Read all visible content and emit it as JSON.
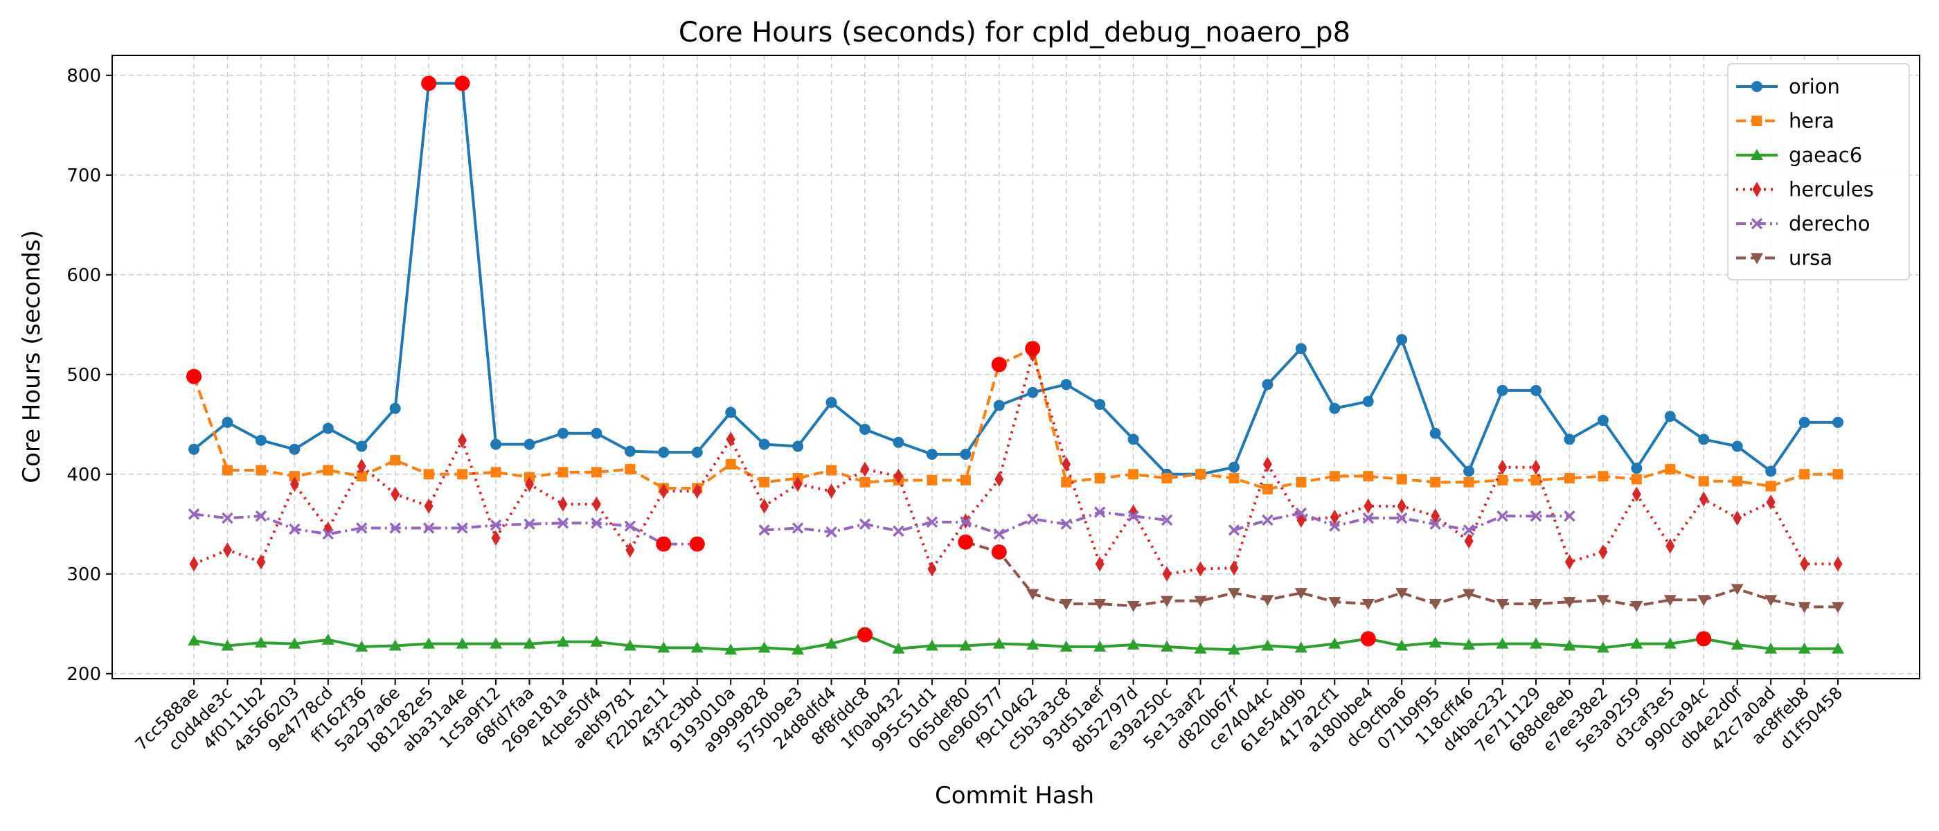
{
  "chart_data": {
    "type": "line",
    "title": "Core Hours (seconds) for cpld_debug_noaero_p8",
    "xlabel": "Commit Hash",
    "ylabel": "Core Hours (seconds)",
    "ylim": [
      195,
      820
    ],
    "yticks": [
      200,
      300,
      400,
      500,
      600,
      700,
      800
    ],
    "grid": true,
    "legend_position": "top-right",
    "categories": [
      "7cc588ae",
      "c0d4de3c",
      "4f0111b2",
      "4a566203",
      "9e4778cd",
      "ff162f36",
      "5a297a6e",
      "b81282e5",
      "aba31a4e",
      "1c5a9f12",
      "68fd7faa",
      "269e181a",
      "4cbe50f4",
      "aebf9781",
      "f22b2e11",
      "43f2c3bd",
      "9193010a",
      "a9999828",
      "5750b9e3",
      "24d8dfd4",
      "8f8fddc8",
      "1f0ab432",
      "995c51d1",
      "065def80",
      "0e960577",
      "f9c10462",
      "c5b3a3c8",
      "93d51aef",
      "8b52797d",
      "e39a250c",
      "5e13aaf2",
      "d820b67f",
      "ce74044c",
      "61e54d9b",
      "417a2cf1",
      "a180bbe4",
      "dc9cfba6",
      "071b9f95",
      "118cff46",
      "d4bac232",
      "7e711129",
      "688de8eb",
      "e7ee38e2",
      "5e3a9259",
      "d3caf3e5",
      "990ca94c",
      "db4e2d0f",
      "42c7a0ad",
      "ac8ffeb8",
      "d1f50458"
    ],
    "series": [
      {
        "name": "orion",
        "color": "#1f77b4",
        "marker": "circle",
        "dash": "solid",
        "values": [
          425,
          452,
          434,
          425,
          446,
          428,
          466,
          792,
          792,
          430,
          430,
          441,
          441,
          423,
          422,
          422,
          462,
          430,
          428,
          472,
          445,
          432,
          420,
          420,
          469,
          482,
          490,
          470,
          435,
          400,
          400,
          407,
          490,
          526,
          466,
          473,
          535,
          441,
          403,
          484,
          484,
          435,
          454,
          406,
          458,
          435,
          428,
          403,
          452,
          452
        ],
        "highlight": [
          7,
          8
        ]
      },
      {
        "name": "hera",
        "color": "#ff7f0e",
        "marker": "square",
        "dash": "dashed",
        "values": [
          498,
          404,
          404,
          398,
          404,
          398,
          414,
          400,
          400,
          402,
          397,
          402,
          402,
          405,
          386,
          386,
          410,
          392,
          396,
          404,
          392,
          394,
          394,
          394,
          510,
          526,
          392,
          396,
          400,
          396,
          400,
          396,
          385,
          392,
          398,
          398,
          395,
          392,
          392,
          394,
          394,
          396,
          398,
          395,
          405,
          393,
          393,
          388,
          400,
          400
        ],
        "highlight": [
          0,
          24,
          25
        ]
      },
      {
        "name": "gaeac6",
        "color": "#2ca02c",
        "marker": "triangle-up",
        "dash": "solid",
        "values": [
          233,
          228,
          231,
          230,
          234,
          227,
          228,
          230,
          230,
          230,
          230,
          232,
          232,
          228,
          226,
          226,
          224,
          226,
          224,
          230,
          239,
          225,
          228,
          228,
          230,
          229,
          227,
          227,
          229,
          227,
          225,
          224,
          228,
          226,
          230,
          235,
          228,
          231,
          229,
          230,
          230,
          228,
          226,
          230,
          230,
          235,
          229,
          225,
          225,
          225
        ],
        "highlight": [
          20,
          35,
          45
        ]
      },
      {
        "name": "hercules",
        "color": "#d62728",
        "marker": "diamond",
        "dash": "dotted",
        "values": [
          310,
          324,
          312,
          390,
          345,
          408,
          380,
          368,
          434,
          336,
          390,
          370,
          370,
          324,
          383,
          383,
          435,
          368,
          390,
          383,
          405,
          398,
          305,
          353,
          395,
          520,
          410,
          310,
          362,
          300,
          305,
          306,
          410,
          354,
          357,
          368,
          368,
          358,
          333,
          407,
          407,
          312,
          322,
          380,
          328,
          375,
          356,
          372,
          310,
          310
        ],
        "highlight": []
      },
      {
        "name": "derecho",
        "color": "#9467bd",
        "marker": "x",
        "dash": "dashdot",
        "values": [
          360,
          356,
          358,
          345,
          340,
          346,
          346,
          346,
          346,
          349,
          350,
          351,
          351,
          348,
          330,
          330,
          null,
          344,
          346,
          342,
          350,
          343,
          352,
          352,
          340,
          355,
          350,
          362,
          358,
          354,
          null,
          344,
          354,
          361,
          348,
          356,
          356,
          350,
          344,
          358,
          358,
          358,
          null,
          null,
          null,
          null,
          null,
          null,
          null,
          null
        ],
        "highlight": [
          14,
          15
        ]
      },
      {
        "name": "ursa",
        "color": "#8c564b",
        "marker": "triangle-down",
        "dash": "dashed",
        "values": [
          null,
          null,
          null,
          null,
          null,
          null,
          null,
          null,
          null,
          null,
          null,
          null,
          null,
          null,
          null,
          null,
          null,
          null,
          null,
          null,
          null,
          null,
          null,
          332,
          322,
          280,
          270,
          270,
          268,
          273,
          273,
          281,
          274,
          281,
          272,
          270,
          281,
          270,
          280,
          270,
          270,
          272,
          274,
          268,
          274,
          274,
          285,
          274,
          267,
          267
        ],
        "highlight": [
          23,
          24
        ]
      }
    ]
  }
}
